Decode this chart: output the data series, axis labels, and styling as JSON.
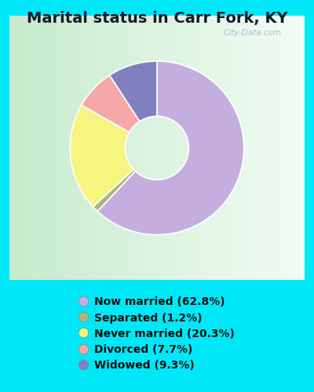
{
  "title": "Marital status in Carr Fork, KY",
  "slices": [
    62.8,
    1.2,
    20.3,
    7.7,
    9.3
  ],
  "labels": [
    "Now married (62.8%)",
    "Separated (1.2%)",
    "Never married (20.3%)",
    "Divorced (7.7%)",
    "Widowed (9.3%)"
  ],
  "colors": [
    "#c4aee0",
    "#a8b87a",
    "#f5f580",
    "#f5a8a8",
    "#8080c0"
  ],
  "start_angle": 90,
  "bg_color": "#00e8f8",
  "chart_bg_left": "#c8e8c8",
  "chart_bg_right": "#f0f8f0",
  "watermark": "City-Data.com",
  "title_fontsize": 14,
  "legend_fontsize": 10,
  "donut_width": 0.52
}
